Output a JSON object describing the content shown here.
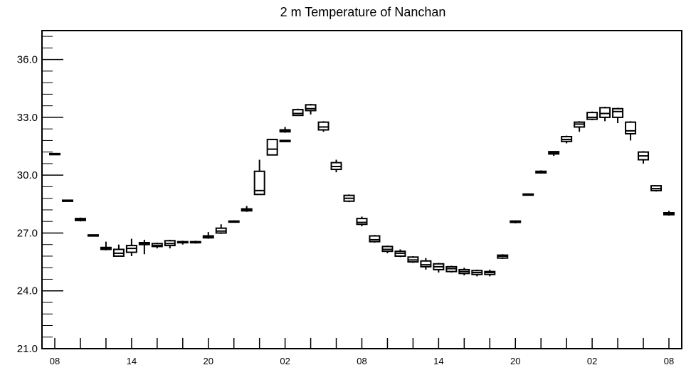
{
  "chart_data": {
    "type": "box",
    "title": "2 m Temperature of Nanchan",
    "xlabel": "",
    "ylabel": "",
    "ylim": [
      21.0,
      37.5
    ],
    "yticks": [
      "21.0",
      "24.0",
      "27.0",
      "30.0",
      "33.0",
      "36.0"
    ],
    "xtick_labels": [
      "08",
      "14",
      "20",
      "02",
      "08",
      "14",
      "20",
      "02",
      "08"
    ],
    "x_hours_range": [
      0,
      48
    ],
    "grid": false,
    "legend": "none",
    "series": [
      {
        "h": 0,
        "lo": 31.05,
        "q1": 31.08,
        "med": 31.1,
        "q3": 31.12,
        "hi": 31.15
      },
      {
        "h": 1,
        "lo": 28.63,
        "q1": 28.65,
        "med": 28.68,
        "q3": 28.7,
        "hi": 28.72
      },
      {
        "h": 2,
        "lo": 27.6,
        "q1": 27.65,
        "med": 27.7,
        "q3": 27.75,
        "hi": 27.8
      },
      {
        "h": 3,
        "lo": 26.85,
        "q1": 26.87,
        "med": 26.88,
        "q3": 26.9,
        "hi": 26.92
      },
      {
        "h": 4,
        "lo": 26.1,
        "q1": 26.15,
        "med": 26.2,
        "q3": 26.25,
        "hi": 26.55
      },
      {
        "h": 5,
        "lo": 25.8,
        "q1": 25.8,
        "med": 25.95,
        "q3": 26.15,
        "hi": 26.4
      },
      {
        "h": 6,
        "lo": 25.8,
        "q1": 26.0,
        "med": 26.2,
        "q3": 26.35,
        "hi": 26.7
      },
      {
        "h": 7,
        "lo": 25.9,
        "q1": 26.4,
        "med": 26.45,
        "q3": 26.5,
        "hi": 26.65
      },
      {
        "h": 8,
        "lo": 26.2,
        "q1": 26.3,
        "med": 26.35,
        "q3": 26.45,
        "hi": 26.5
      },
      {
        "h": 9,
        "lo": 26.2,
        "q1": 26.35,
        "med": 26.45,
        "q3": 26.6,
        "hi": 26.65
      },
      {
        "h": 10,
        "lo": 26.4,
        "q1": 26.5,
        "med": 26.5,
        "q3": 26.55,
        "hi": 26.6
      },
      {
        "h": 11,
        "lo": 26.45,
        "q1": 26.5,
        "med": 26.5,
        "q3": 26.55,
        "hi": 26.6
      },
      {
        "h": 12,
        "lo": 26.7,
        "q1": 26.75,
        "med": 26.8,
        "q3": 26.85,
        "hi": 27.05
      },
      {
        "h": 13,
        "lo": 26.95,
        "q1": 27.0,
        "med": 27.1,
        "q3": 27.25,
        "hi": 27.45
      },
      {
        "h": 14,
        "lo": 27.55,
        "q1": 27.57,
        "med": 27.6,
        "q3": 27.62,
        "hi": 27.65
      },
      {
        "h": 15,
        "lo": 28.1,
        "q1": 28.15,
        "med": 28.2,
        "q3": 28.25,
        "hi": 28.4
      },
      {
        "h": 16,
        "lo": 29.0,
        "q1": 29.0,
        "med": 29.2,
        "q3": 30.2,
        "hi": 30.8
      },
      {
        "h": 17,
        "lo": 31.05,
        "q1": 31.05,
        "med": 31.35,
        "q3": 31.85,
        "hi": 31.85
      },
      {
        "h": 18,
        "lo": 31.8,
        "q1": 31.8,
        "med": 31.8,
        "q3": 31.8,
        "hi": 31.8
      },
      {
        "h": 18,
        "lo": 32.2,
        "q1": 32.25,
        "med": 32.3,
        "q3": 32.35,
        "hi": 32.5
      },
      {
        "h": 19,
        "lo": 33.1,
        "q1": 33.1,
        "med": 33.2,
        "q3": 33.4,
        "hi": 33.45
      },
      {
        "h": 20,
        "lo": 33.15,
        "q1": 33.35,
        "med": 33.45,
        "q3": 33.65,
        "hi": 33.7
      },
      {
        "h": 21,
        "lo": 32.25,
        "q1": 32.35,
        "med": 32.5,
        "q3": 32.75,
        "hi": 32.8
      },
      {
        "h": 22,
        "lo": 30.15,
        "q1": 30.3,
        "med": 30.45,
        "q3": 30.65,
        "hi": 30.8
      },
      {
        "h": 23,
        "lo": 28.6,
        "q1": 28.65,
        "med": 28.8,
        "q3": 28.95,
        "hi": 29.0
      },
      {
        "h": 24,
        "lo": 27.35,
        "q1": 27.45,
        "med": 27.55,
        "q3": 27.75,
        "hi": 27.85
      },
      {
        "h": 25,
        "lo": 26.5,
        "q1": 26.55,
        "med": 26.65,
        "q3": 26.85,
        "hi": 26.9
      },
      {
        "h": 26,
        "lo": 25.95,
        "q1": 26.05,
        "med": 26.15,
        "q3": 26.3,
        "hi": 26.35
      },
      {
        "h": 27,
        "lo": 25.75,
        "q1": 25.8,
        "med": 25.95,
        "q3": 26.05,
        "hi": 26.15
      },
      {
        "h": 28,
        "lo": 25.45,
        "q1": 25.5,
        "med": 25.6,
        "q3": 25.75,
        "hi": 25.8
      },
      {
        "h": 29,
        "lo": 25.1,
        "q1": 25.25,
        "med": 25.35,
        "q3": 25.55,
        "hi": 25.7
      },
      {
        "h": 30,
        "lo": 24.95,
        "q1": 25.1,
        "med": 25.25,
        "q3": 25.4,
        "hi": 25.45
      },
      {
        "h": 31,
        "lo": 24.95,
        "q1": 25.0,
        "med": 25.15,
        "q3": 25.25,
        "hi": 25.3
      },
      {
        "h": 32,
        "lo": 24.8,
        "q1": 24.9,
        "med": 25.0,
        "q3": 25.1,
        "hi": 25.2
      },
      {
        "h": 33,
        "lo": 24.75,
        "q1": 24.85,
        "med": 24.95,
        "q3": 25.05,
        "hi": 25.1
      },
      {
        "h": 34,
        "lo": 24.75,
        "q1": 24.85,
        "med": 24.95,
        "q3": 25.0,
        "hi": 25.1
      },
      {
        "h": 35,
        "lo": 25.65,
        "q1": 25.7,
        "med": 25.8,
        "q3": 25.85,
        "hi": 25.9
      },
      {
        "h": 36,
        "lo": 27.5,
        "q1": 27.55,
        "med": 27.6,
        "q3": 27.62,
        "hi": 27.65
      },
      {
        "h": 37,
        "lo": 28.95,
        "q1": 28.97,
        "med": 29.0,
        "q3": 29.02,
        "hi": 29.05
      },
      {
        "h": 38,
        "lo": 30.1,
        "q1": 30.12,
        "med": 30.15,
        "q3": 30.2,
        "hi": 30.25
      },
      {
        "h": 39,
        "lo": 31.0,
        "q1": 31.1,
        "med": 31.15,
        "q3": 31.22,
        "hi": 31.25
      },
      {
        "h": 40,
        "lo": 31.65,
        "q1": 31.75,
        "med": 31.85,
        "q3": 32.0,
        "hi": 32.05
      },
      {
        "h": 41,
        "lo": 32.25,
        "q1": 32.5,
        "med": 32.65,
        "q3": 32.75,
        "hi": 32.8
      },
      {
        "h": 42,
        "lo": 32.85,
        "q1": 32.9,
        "med": 33.0,
        "q3": 33.25,
        "hi": 33.3
      },
      {
        "h": 43,
        "lo": 32.8,
        "q1": 33.0,
        "med": 33.2,
        "q3": 33.5,
        "hi": 33.55
      },
      {
        "h": 44,
        "lo": 32.7,
        "q1": 33.0,
        "med": 33.3,
        "q3": 33.45,
        "hi": 33.5
      },
      {
        "h": 45,
        "lo": 31.8,
        "q1": 32.15,
        "med": 32.3,
        "q3": 32.75,
        "hi": 32.8
      },
      {
        "h": 46,
        "lo": 30.6,
        "q1": 30.8,
        "med": 31.0,
        "q3": 31.2,
        "hi": 31.25
      },
      {
        "h": 47,
        "lo": 29.15,
        "q1": 29.2,
        "med": 29.3,
        "q3": 29.45,
        "hi": 29.45
      },
      {
        "h": 48,
        "lo": 27.9,
        "q1": 27.95,
        "med": 28.0,
        "q3": 28.05,
        "hi": 28.15
      }
    ]
  }
}
